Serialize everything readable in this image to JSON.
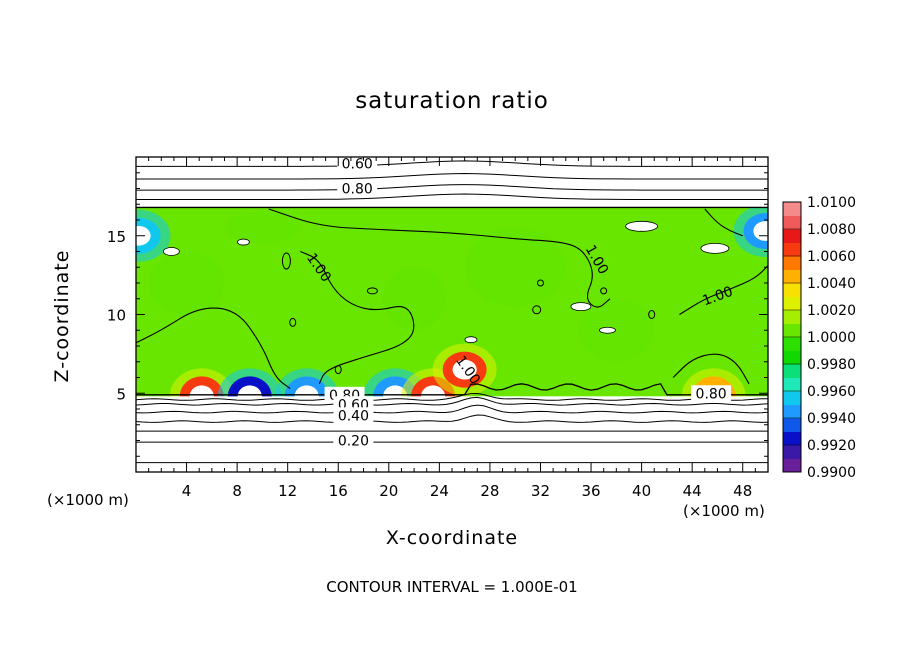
{
  "chart_data": {
    "type": "heatmap",
    "title": "saturation ratio",
    "xlabel": "X-coordinate",
    "ylabel": "Z-coordinate",
    "x_unit_left": "(×1000 m)",
    "x_unit_right": "(×1000 m)",
    "xlim": [
      0,
      50
    ],
    "ylim": [
      0,
      20
    ],
    "x_ticks": [
      4,
      8,
      12,
      16,
      20,
      24,
      28,
      32,
      36,
      40,
      44,
      48
    ],
    "x_tick_labels": [
      "4",
      "8",
      "12",
      "16",
      "20",
      "24",
      "28",
      "32",
      "36",
      "40",
      "44",
      "48"
    ],
    "y_ticks": [
      5,
      10,
      15
    ],
    "y_tick_labels": [
      "5",
      "10",
      "15"
    ],
    "colorbar": {
      "min": 0.99,
      "max": 1.01,
      "step": 0.001,
      "labels": [
        "1.0100",
        "1.0080",
        "1.0060",
        "1.0040",
        "1.0020",
        "1.0000",
        "0.9980",
        "0.9960",
        "0.9940",
        "0.9920",
        "0.9900"
      ],
      "colors": [
        "#6a1f9a",
        "#3a18a8",
        "#0a10c8",
        "#1058ea",
        "#1f9aff",
        "#10c8ee",
        "#1ee8b8",
        "#0adf7a",
        "#10d800",
        "#2be000",
        "#68e600",
        "#a6ee00",
        "#dcf000",
        "#f8e000",
        "#ffb000",
        "#ff7800",
        "#f83a10",
        "#e81818",
        "#f05a5a",
        "#f48a8a"
      ]
    },
    "cloud_layer": {
      "z_bottom": 4.8,
      "z_top": 16.8,
      "background_value": 1.0003
    },
    "hotspots": [
      {
        "x": 5.2,
        "z": 5.0,
        "value": 1.0065
      },
      {
        "x": 9.0,
        "z": 5.1,
        "value": 0.9925
      },
      {
        "x": 13.5,
        "z": 5.0,
        "value": 0.9945
      },
      {
        "x": 20.5,
        "z": 5.0,
        "value": 0.994
      },
      {
        "x": 23.5,
        "z": 5.0,
        "value": 1.006
      },
      {
        "x": 26.0,
        "z": 6.5,
        "value": 1.007
      },
      {
        "x": 45.7,
        "z": 5.5,
        "value": 1.0045
      },
      {
        "x": 49.8,
        "z": 15.3,
        "value": 0.994
      },
      {
        "x": 0.2,
        "z": 15.0,
        "value": 0.9955
      }
    ],
    "contour_labels_upper": [
      {
        "text": "0.60",
        "x": 17.5,
        "z": 19.6
      },
      {
        "text": "0.80",
        "x": 17.5,
        "z": 18.0
      }
    ],
    "contour_labels_lower": [
      {
        "text": "0.80",
        "x": 16.5,
        "z": 4.9
      },
      {
        "text": "0.60",
        "x": 17.2,
        "z": 4.3
      },
      {
        "text": "0.40",
        "x": 17.2,
        "z": 3.6
      },
      {
        "text": "0.20",
        "x": 17.2,
        "z": 2.0
      },
      {
        "text": "0.80",
        "x": 45.5,
        "z": 5.0
      }
    ],
    "contour_labels_inner": [
      {
        "text": "1.00",
        "x": 14.5,
        "z": 13.0,
        "rotate": 55
      },
      {
        "text": "1.00",
        "x": 36.5,
        "z": 13.5,
        "rotate": 60
      },
      {
        "text": "1.00",
        "x": 46.0,
        "z": 11.2,
        "rotate": -20
      },
      {
        "text": "1.00",
        "x": 26.3,
        "z": 6.5,
        "rotate": 55
      }
    ],
    "stable_contours_upper": [
      17.3,
      17.9,
      18.6,
      19.4
    ],
    "stable_contours_lower": [
      0.6,
      1.9,
      2.6,
      3.2,
      3.8,
      4.3,
      4.6
    ],
    "footer": "CONTOUR INTERVAL = 1.000E-01"
  }
}
